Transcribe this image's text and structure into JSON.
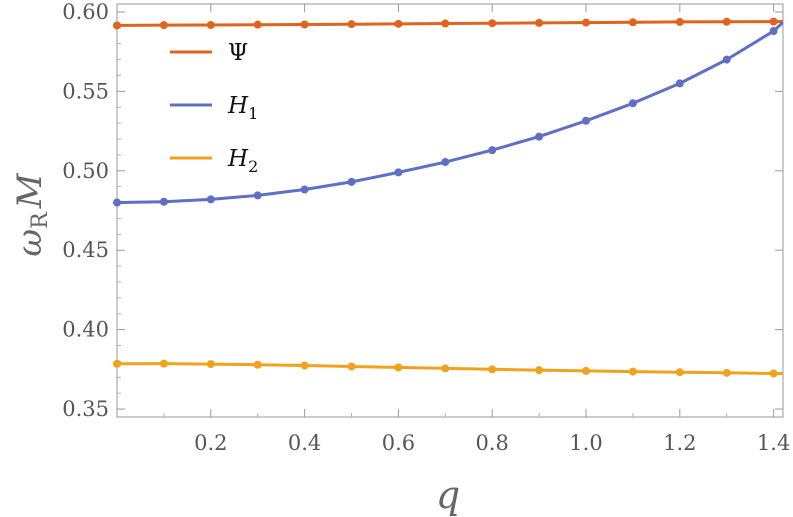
{
  "chart_data": {
    "type": "line",
    "title": "",
    "xlabel": "q",
    "ylabel_main": "ω",
    "ylabel_sub": "R",
    "ylabel_tail": "M",
    "xlim": [
      0,
      1.42
    ],
    "ylim": [
      0.345,
      0.605
    ],
    "x_ticks": [
      0.2,
      0.4,
      0.6,
      0.8,
      1.0,
      1.2,
      1.4
    ],
    "x_tick_labels": [
      "0.2",
      "0.4",
      "0.6",
      "0.8",
      "1.0",
      "1.2",
      "1.4"
    ],
    "y_ticks": [
      0.35,
      0.4,
      0.45,
      0.5,
      0.55,
      0.6
    ],
    "y_tick_labels": [
      "0.35",
      "0.40",
      "0.45",
      "0.50",
      "0.55",
      "0.60"
    ],
    "grid": false,
    "legend_position": "top-left",
    "x": [
      0.0,
      0.1,
      0.2,
      0.3,
      0.4,
      0.5,
      0.6,
      0.7,
      0.8,
      0.9,
      1.0,
      1.1,
      1.2,
      1.3,
      1.4,
      1.42
    ],
    "series": [
      {
        "name": "Ψ",
        "legend_main": "Ψ",
        "legend_sub": "",
        "color": "#E0631E",
        "values": [
          0.5915,
          0.5917,
          0.5918,
          0.592,
          0.5921,
          0.5923,
          0.5925,
          0.5927,
          0.5929,
          0.5931,
          0.5933,
          0.5935,
          0.5937,
          0.5938,
          0.5939,
          0.594
        ]
      },
      {
        "name": "H1",
        "legend_main": "H",
        "legend_sub": "1",
        "color": "#5E6FC6",
        "values": [
          0.48,
          0.4805,
          0.482,
          0.4845,
          0.4882,
          0.493,
          0.499,
          0.5055,
          0.513,
          0.5215,
          0.5315,
          0.5425,
          0.555,
          0.57,
          0.588,
          0.5935
        ]
      },
      {
        "name": "H2",
        "legend_main": "H",
        "legend_sub": "2",
        "color": "#F0A21C",
        "values": [
          0.3785,
          0.3786,
          0.3783,
          0.3779,
          0.3774,
          0.3768,
          0.3762,
          0.3756,
          0.375,
          0.3745,
          0.374,
          0.3736,
          0.3732,
          0.3728,
          0.3724,
          0.3723
        ]
      }
    ]
  }
}
